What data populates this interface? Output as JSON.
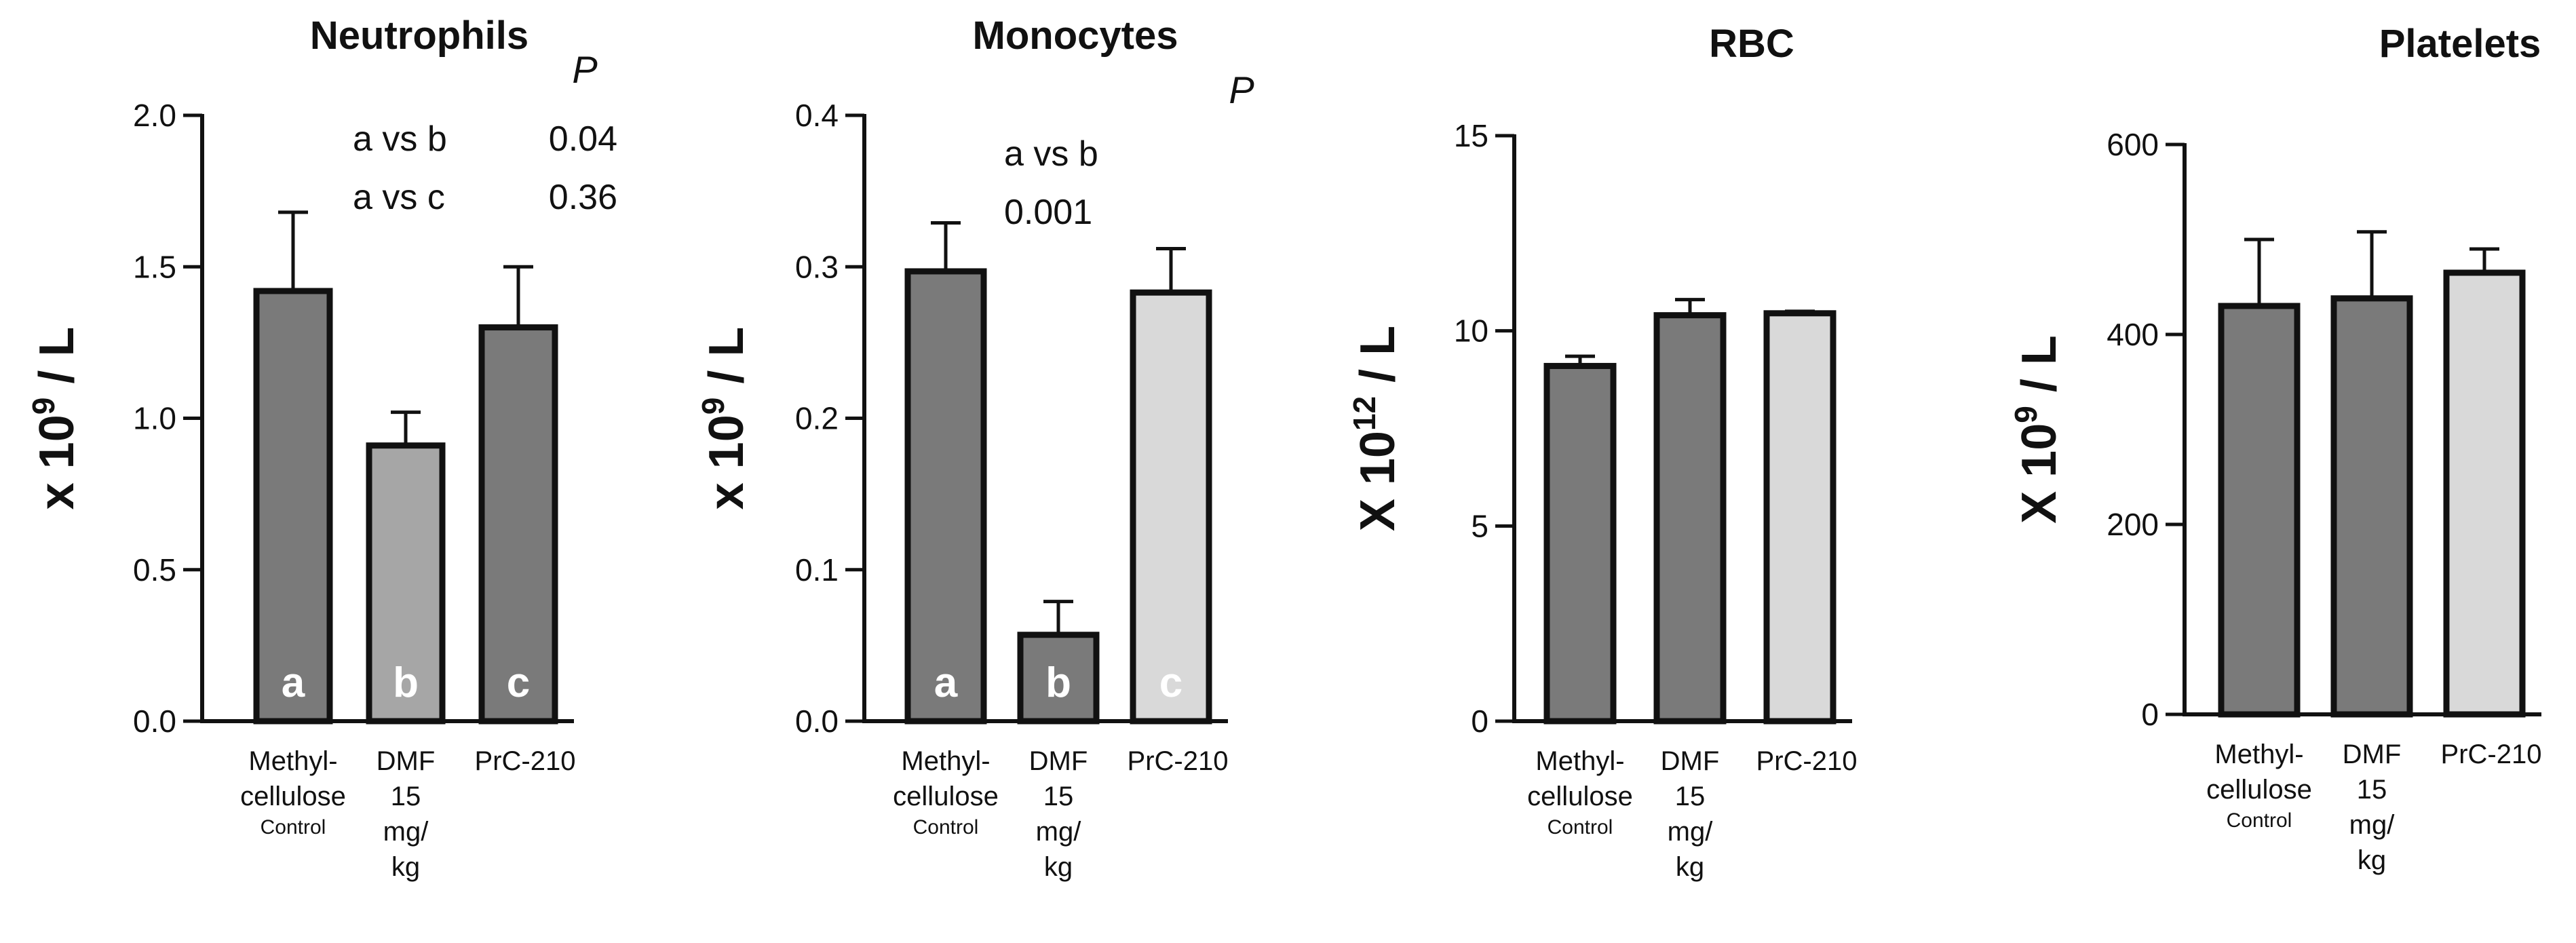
{
  "colors": {
    "dark": "#7a7a7a",
    "mid": "#a6a6a6",
    "light": "#d9d9d9",
    "outline": "#111111",
    "letter": "#ffffff"
  },
  "chart_data": [
    {
      "type": "bar",
      "title": "Neutrophils",
      "ylabel": "x 10",
      "ylabel_exp": "9",
      "ylabel_unit": " / L",
      "ylim": [
        0,
        2.0
      ],
      "ticks": [
        "0.0",
        "0.5",
        "1.0",
        "1.5",
        "2.0"
      ],
      "tick_values": [
        0,
        0.5,
        1.0,
        1.5,
        2.0
      ],
      "categories": [
        [
          "Methyl-",
          "cellulose",
          "Control"
        ],
        [
          "DMF",
          "15",
          "mg/",
          "kg"
        ],
        [
          "PrC-210"
        ]
      ],
      "values": [
        1.42,
        0.91,
        1.3
      ],
      "errors": [
        0.26,
        0.11,
        0.2
      ],
      "bar_colors": [
        "dark",
        "mid",
        "dark"
      ],
      "bar_letters": [
        "a",
        "b",
        "c"
      ],
      "p_label": "P",
      "annotations": [
        {
          "compare": "a vs b",
          "p": "0.04"
        },
        {
          "compare": "a vs c",
          "p": "0.36"
        }
      ]
    },
    {
      "type": "bar",
      "title": "Monocytes",
      "ylabel": "x 10",
      "ylabel_exp": "9",
      "ylabel_unit": " / L",
      "ylim": [
        0,
        0.4
      ],
      "ticks": [
        "0.0",
        "0.1",
        "0.2",
        "0.3",
        "0.4"
      ],
      "tick_values": [
        0,
        0.1,
        0.2,
        0.3,
        0.4
      ],
      "categories": [
        [
          "Methyl-",
          "cellulose",
          "Control"
        ],
        [
          "DMF",
          "15",
          "mg/",
          "kg"
        ],
        [
          "PrC-210"
        ]
      ],
      "values": [
        0.297,
        0.057,
        0.283
      ],
      "errors": [
        0.032,
        0.022,
        0.029
      ],
      "bar_colors": [
        "dark",
        "dark",
        "light"
      ],
      "bar_letters": [
        "a",
        "b",
        "c"
      ],
      "p_label": "P",
      "annotations": [
        {
          "compare": "a vs b",
          "p": "0.001"
        }
      ]
    },
    {
      "type": "bar",
      "title": "RBC",
      "ylabel": "X 10",
      "ylabel_exp": "12",
      "ylabel_unit": " / L",
      "ylim": [
        0,
        15
      ],
      "ticks": [
        "0",
        "5",
        "10",
        "15"
      ],
      "tick_values": [
        0,
        5,
        10,
        15
      ],
      "categories": [
        [
          "Methyl-",
          "cellulose",
          "Control"
        ],
        [
          "DMF",
          "15",
          "mg/",
          "kg"
        ],
        [
          "PrC-210"
        ]
      ],
      "values": [
        9.1,
        10.4,
        10.45
      ],
      "errors": [
        0.25,
        0.4,
        0.05
      ],
      "bar_colors": [
        "dark",
        "dark",
        "light"
      ],
      "bar_letters": [],
      "p_label": "",
      "annotations": []
    },
    {
      "type": "bar",
      "title": "Platelets",
      "ylabel": "X 10",
      "ylabel_exp": "9",
      "ylabel_unit": " / L",
      "ylim": [
        0,
        600
      ],
      "ticks": [
        "0",
        "200",
        "400",
        "600"
      ],
      "tick_values": [
        0,
        200,
        400,
        600
      ],
      "categories": [
        [
          "Methyl-",
          "cellulose",
          "Control"
        ],
        [
          "DMF",
          "15",
          "mg/",
          "kg"
        ],
        [
          "PrC-210"
        ]
      ],
      "values": [
        430,
        438,
        465
      ],
      "errors": [
        70,
        70,
        25
      ],
      "bar_colors": [
        "dark",
        "dark",
        "light"
      ],
      "bar_letters": [],
      "p_label": "",
      "annotations": []
    }
  ]
}
